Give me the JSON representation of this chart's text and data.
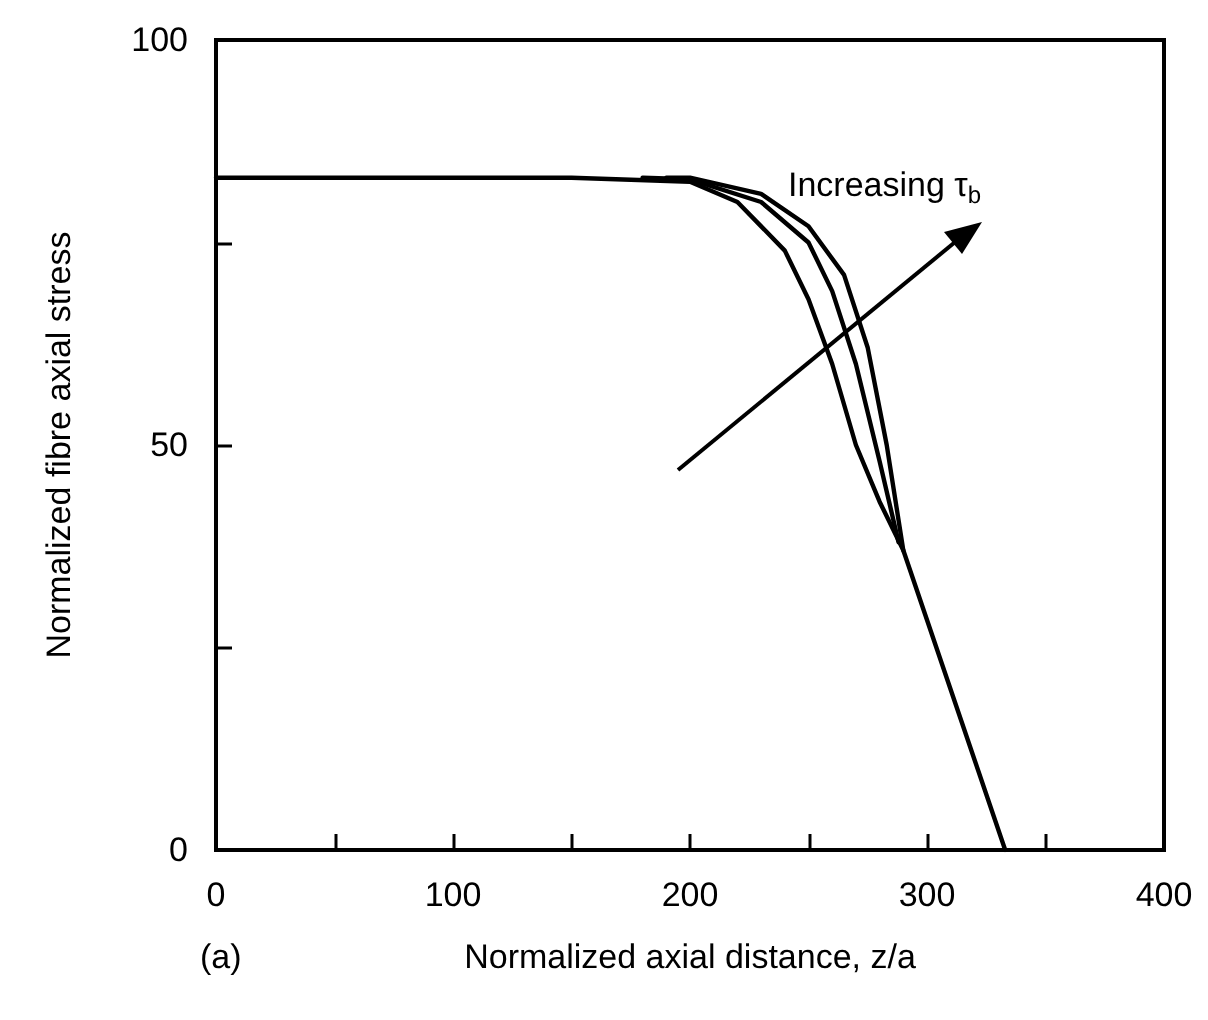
{
  "chart_data": {
    "type": "line",
    "xlabel": "Normalized axial distance, z/a",
    "ylabel": "Normalized fibre axial stress",
    "xlim": [
      0,
      400
    ],
    "ylim": [
      0,
      100
    ],
    "xticks": [
      0,
      {
        "value": 50,
        "label": null
      },
      100,
      {
        "value": 150,
        "label": null
      },
      200,
      {
        "value": 250,
        "label": null
      },
      300,
      {
        "value": 350,
        "label": null
      },
      400
    ],
    "yticks": [
      0,
      {
        "value": 25,
        "label": null
      },
      50,
      {
        "value": 75,
        "label": null
      },
      100
    ],
    "grid": false,
    "marker": "none",
    "line_style": "solid",
    "series": [
      {
        "color": "#000000",
        "x": [
          0,
          150,
          200,
          220,
          240,
          250,
          260,
          270,
          280,
          290,
          333
        ],
        "values": [
          83,
          83,
          82.5,
          80,
          74,
          68,
          60,
          50,
          43,
          37,
          0
        ]
      },
      {
        "color": "#000000",
        "x": [
          180,
          200,
          230,
          250,
          260,
          270,
          280,
          288
        ],
        "values": [
          83,
          82.8,
          80,
          75,
          69,
          60,
          48,
          38
        ]
      },
      {
        "color": "#000000",
        "x": [
          190,
          200,
          230,
          250,
          265,
          275,
          283,
          290
        ],
        "values": [
          83,
          83,
          81,
          77,
          71,
          62,
          50,
          37
        ]
      }
    ],
    "annotations": [
      "Increasing τ$_{b}$",
      "(a)"
    ]
  }
}
